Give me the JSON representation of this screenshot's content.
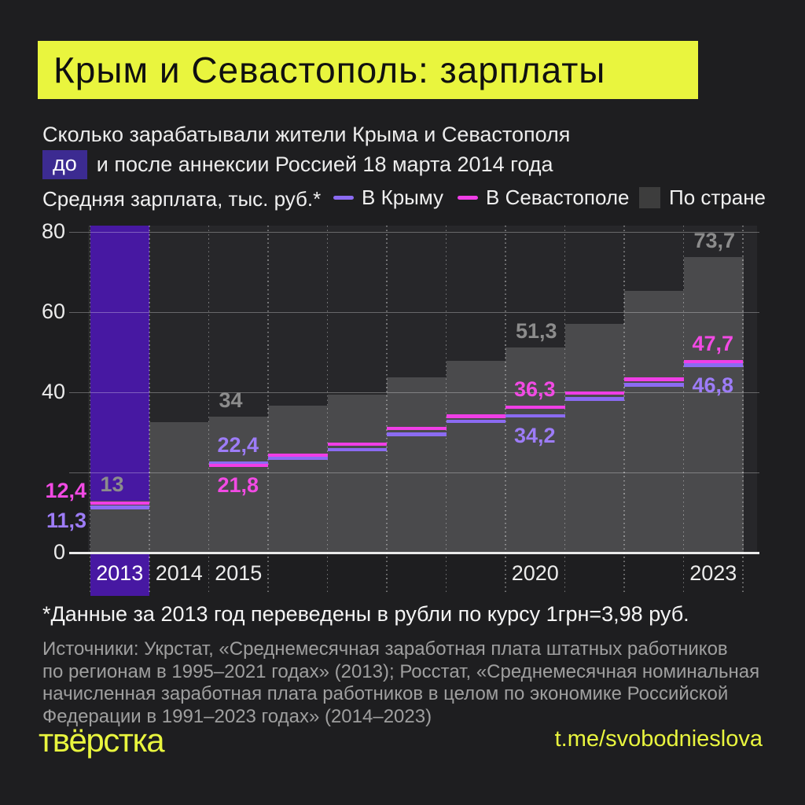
{
  "header": {
    "title": "Крым и Севастополь: зарплаты",
    "subtitle_line1": "Сколько зарабатывали жители Крыма и Севастополя",
    "subtitle_chip": "до",
    "subtitle_line2": "и после аннексии Россией 18 марта 2014 года"
  },
  "legend": {
    "label": "Средняя зарплата, тыс. руб.*",
    "items": [
      {
        "label": "В Крыму",
        "swatch": "line",
        "color": "#8b6bf2"
      },
      {
        "label": "В Севастополе",
        "swatch": "line",
        "color": "#f03ee6"
      },
      {
        "label": "По стране",
        "swatch": "box",
        "color": "#3d3d3d"
      }
    ]
  },
  "chart_data": {
    "type": "area",
    "title": "Средняя зарплата, тыс. руб.",
    "xlabel": "",
    "ylabel": "тыс. руб.",
    "ylim": [
      0,
      81.6
    ],
    "grid": "horizontal solid, vertical dotted per year",
    "legend_position": "top",
    "years": [
      2013,
      2014,
      2015,
      2016,
      2017,
      2018,
      2019,
      2020,
      2021,
      2022,
      2023
    ],
    "highlight_year": 2013,
    "y_ticks": [
      {
        "value": 0,
        "label": "0"
      },
      {
        "value": 20,
        "label": ""
      },
      {
        "value": 40,
        "label": "40"
      },
      {
        "value": 60,
        "label": "60"
      },
      {
        "value": 80,
        "label": "80"
      }
    ],
    "x_ticks": [
      {
        "year": 2013,
        "label": "2013"
      },
      {
        "year": 2014,
        "label": "2014"
      },
      {
        "year": 2015,
        "label": "2015"
      },
      {
        "year": 2020,
        "label": "2020"
      },
      {
        "year": 2023,
        "label": "2023"
      }
    ],
    "series": [
      {
        "id": "country",
        "name": "По стране",
        "style": "step-area",
        "color": "#4a4a4c",
        "label_color": "#8c8c8c",
        "values": [
          13,
          32.6,
          34,
          36.7,
          39.4,
          43.7,
          47.9,
          51.3,
          57.2,
          65.3,
          73.7
        ]
      },
      {
        "id": "crimea",
        "name": "В Крыму",
        "style": "step-line",
        "color": "#8b6bf2",
        "label_color": "#9d7cf8",
        "values": [
          11.3,
          null,
          22.4,
          23.7,
          25.8,
          29.6,
          32.8,
          34.2,
          38.4,
          41.9,
          46.8
        ]
      },
      {
        "id": "sevastopol",
        "name": "В Севастополе",
        "style": "step-line",
        "color": "#f03ee6",
        "label_color": "#f24ae4",
        "values": [
          12.4,
          null,
          21.8,
          24.4,
          27.1,
          31,
          34.1,
          36.3,
          39.9,
          43.3,
          47.7
        ]
      }
    ],
    "annotations": [
      {
        "text": "13",
        "series": "country",
        "year": 2013,
        "placement": "above-fill"
      },
      {
        "text": "34",
        "series": "country",
        "year": 2015,
        "placement": "above-fill"
      },
      {
        "text": "51,3",
        "series": "country",
        "year": 2020,
        "placement": "above-fill"
      },
      {
        "text": "73,7",
        "series": "country",
        "year": 2023,
        "placement": "above-fill"
      },
      {
        "text": "12,4",
        "series": "sevastopol",
        "year": 2013,
        "placement": "axis-left-above"
      },
      {
        "text": "11,3",
        "series": "crimea",
        "year": 2013,
        "placement": "axis-left-below"
      },
      {
        "text": "22,4",
        "series": "crimea",
        "year": 2015,
        "placement": "above-line"
      },
      {
        "text": "21,8",
        "series": "sevastopol",
        "year": 2015,
        "placement": "below-line"
      },
      {
        "text": "36,3",
        "series": "sevastopol",
        "year": 2020,
        "placement": "above-line"
      },
      {
        "text": "34,2",
        "series": "crimea",
        "year": 2020,
        "placement": "below-line"
      },
      {
        "text": "47,7",
        "series": "sevastopol",
        "year": 2023,
        "placement": "above-line"
      },
      {
        "text": "46,8",
        "series": "crimea",
        "year": 2023,
        "placement": "below-line"
      }
    ],
    "colors": {
      "plot_bg": "#27272a",
      "highlight_band": "#4718a2",
      "axis_line": "#eaeaea",
      "grid": "rgba(255,255,255,0.30)",
      "dotted": "rgba(255,255,255,0.38)"
    }
  },
  "footer": {
    "footnote": "*Данные за 2013 год переведены в рубли по курсу 1грн=3,98 руб.",
    "sources": "Источники: Укрстат, «Среднемесячная заработная плата штатных работников\nпо регионам в 1995–2021 годах» (2013); Росстат, «Среднемесячная номинальная\nначисленная заработная плата работников в целом по экономике Российской\nФедерации в 1991–2023 годах» (2014–2023)",
    "logo": "твёрстка",
    "link": "t.me/svobodnieslova"
  },
  "theme": {
    "background": "#1e1e20",
    "yellow": "#e9f53e",
    "chip_purple": "#3c2b91"
  }
}
